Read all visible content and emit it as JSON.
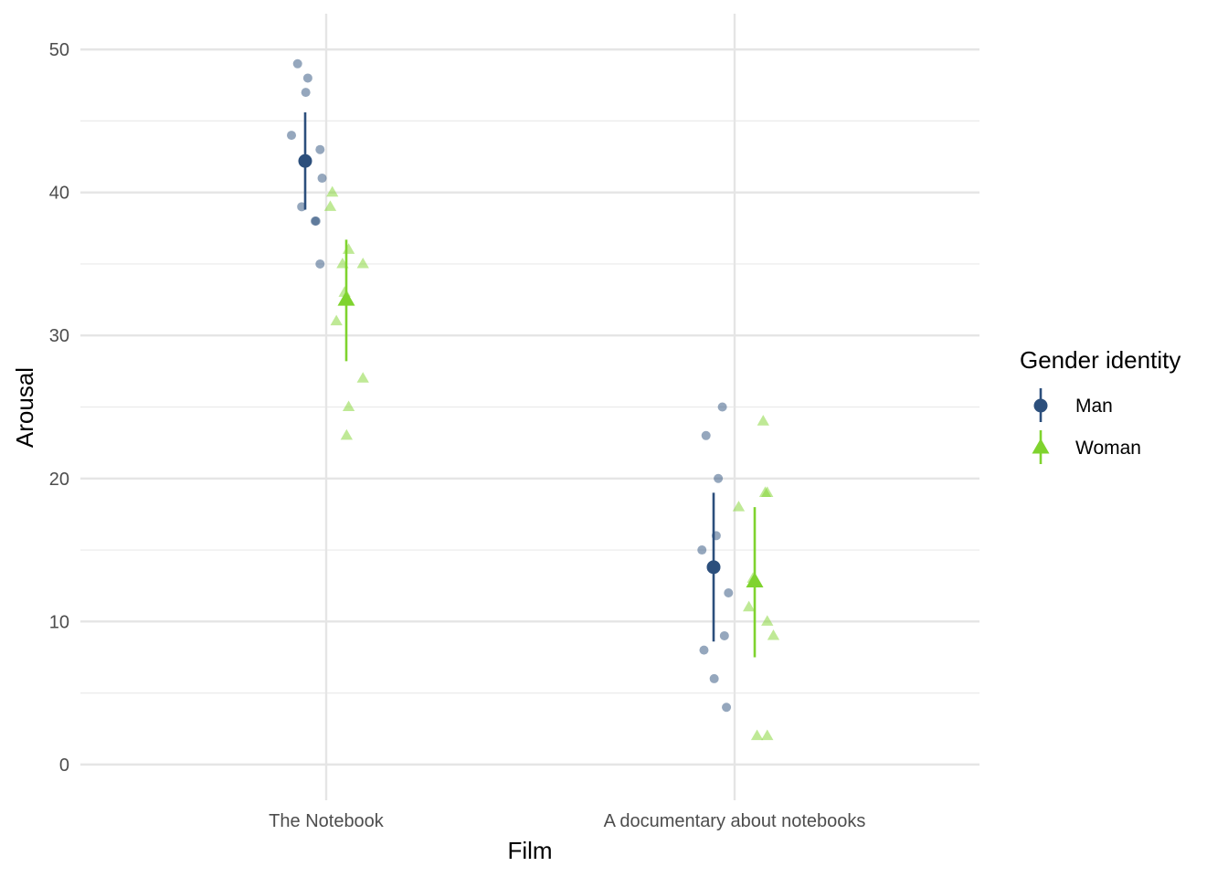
{
  "chart_data": {
    "type": "scatter",
    "title": "",
    "xlabel": "Film",
    "ylabel": "Arousal",
    "categories": [
      "The Notebook",
      "A documentary about notebooks"
    ],
    "ylim": [
      -2.5,
      52.5
    ],
    "yticks": [
      0,
      10,
      20,
      30,
      40,
      50
    ],
    "grid": true,
    "legend": {
      "title": "Gender identity",
      "position": "right",
      "entries": [
        "Man",
        "Woman"
      ]
    },
    "series": [
      {
        "name": "Man",
        "color": "#2c4f7c",
        "marker": "circle",
        "summary": [
          {
            "category": "The Notebook",
            "mean": 42.2,
            "lower": 38.8,
            "upper": 45.6
          },
          {
            "category": "A documentary about notebooks",
            "mean": 13.8,
            "lower": 8.6,
            "upper": 19.0
          }
        ],
        "points": [
          {
            "category": "The Notebook",
            "jitter": -0.07,
            "y": 49
          },
          {
            "category": "The Notebook",
            "jitter": -0.045,
            "y": 48
          },
          {
            "category": "The Notebook",
            "jitter": -0.05,
            "y": 47
          },
          {
            "category": "The Notebook",
            "jitter": -0.085,
            "y": 44
          },
          {
            "category": "The Notebook",
            "jitter": -0.015,
            "y": 43
          },
          {
            "category": "The Notebook",
            "jitter": -0.01,
            "y": 41
          },
          {
            "category": "The Notebook",
            "jitter": -0.06,
            "y": 39
          },
          {
            "category": "The Notebook",
            "jitter": -0.025,
            "y": 38
          },
          {
            "category": "The Notebook",
            "jitter": -0.027,
            "y": 38
          },
          {
            "category": "The Notebook",
            "jitter": -0.015,
            "y": 35
          },
          {
            "category": "A documentary about notebooks",
            "jitter": -0.03,
            "y": 25
          },
          {
            "category": "A documentary about notebooks",
            "jitter": -0.07,
            "y": 23
          },
          {
            "category": "A documentary about notebooks",
            "jitter": -0.04,
            "y": 20
          },
          {
            "category": "A documentary about notebooks",
            "jitter": -0.045,
            "y": 16
          },
          {
            "category": "A documentary about notebooks",
            "jitter": -0.08,
            "y": 15
          },
          {
            "category": "A documentary about notebooks",
            "jitter": -0.015,
            "y": 12
          },
          {
            "category": "A documentary about notebooks",
            "jitter": -0.025,
            "y": 9
          },
          {
            "category": "A documentary about notebooks",
            "jitter": -0.075,
            "y": 8
          },
          {
            "category": "A documentary about notebooks",
            "jitter": -0.05,
            "y": 6
          },
          {
            "category": "A documentary about notebooks",
            "jitter": -0.02,
            "y": 4
          }
        ]
      },
      {
        "name": "Woman",
        "color": "#7fd32e",
        "marker": "triangle",
        "summary": [
          {
            "category": "The Notebook",
            "mean": 32.5,
            "lower": 28.2,
            "upper": 36.7
          },
          {
            "category": "A documentary about notebooks",
            "mean": 12.8,
            "lower": 7.5,
            "upper": 18.0
          }
        ],
        "points": [
          {
            "category": "The Notebook",
            "jitter": 0.015,
            "y": 40
          },
          {
            "category": "The Notebook",
            "jitter": 0.01,
            "y": 39
          },
          {
            "category": "The Notebook",
            "jitter": 0.055,
            "y": 36
          },
          {
            "category": "The Notebook",
            "jitter": 0.04,
            "y": 35
          },
          {
            "category": "The Notebook",
            "jitter": 0.09,
            "y": 35
          },
          {
            "category": "The Notebook",
            "jitter": 0.045,
            "y": 33
          },
          {
            "category": "The Notebook",
            "jitter": 0.025,
            "y": 31
          },
          {
            "category": "The Notebook",
            "jitter": 0.09,
            "y": 27
          },
          {
            "category": "The Notebook",
            "jitter": 0.055,
            "y": 25
          },
          {
            "category": "The Notebook",
            "jitter": 0.05,
            "y": 23
          },
          {
            "category": "A documentary about notebooks",
            "jitter": 0.07,
            "y": 24
          },
          {
            "category": "A documentary about notebooks",
            "jitter": 0.075,
            "y": 19
          },
          {
            "category": "A documentary about notebooks",
            "jitter": 0.08,
            "y": 19
          },
          {
            "category": "A documentary about notebooks",
            "jitter": 0.01,
            "y": 18
          },
          {
            "category": "A documentary about notebooks",
            "jitter": 0.045,
            "y": 13
          },
          {
            "category": "A documentary about notebooks",
            "jitter": 0.035,
            "y": 11
          },
          {
            "category": "A documentary about notebooks",
            "jitter": 0.08,
            "y": 10
          },
          {
            "category": "A documentary about notebooks",
            "jitter": 0.095,
            "y": 9
          },
          {
            "category": "A documentary about notebooks",
            "jitter": 0.055,
            "y": 2
          },
          {
            "category": "A documentary about notebooks",
            "jitter": 0.08,
            "y": 2
          }
        ]
      }
    ]
  }
}
